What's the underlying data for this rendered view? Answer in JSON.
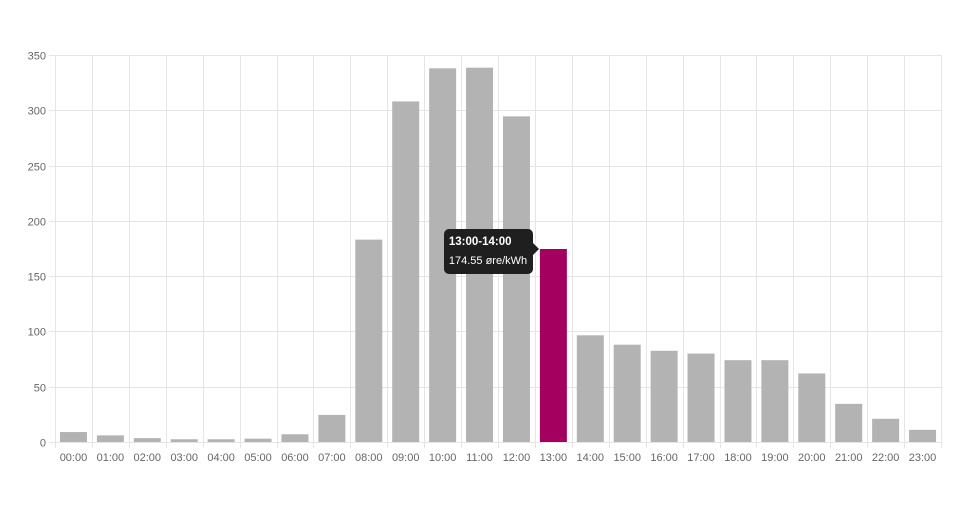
{
  "chart_data": {
    "type": "bar",
    "categories": [
      "00:00",
      "01:00",
      "02:00",
      "03:00",
      "04:00",
      "05:00",
      "06:00",
      "07:00",
      "08:00",
      "09:00",
      "10:00",
      "11:00",
      "12:00",
      "13:00",
      "14:00",
      "15:00",
      "16:00",
      "17:00",
      "18:00",
      "19:00",
      "20:00",
      "21:00",
      "22:00",
      "23:00"
    ],
    "values": [
      9,
      6,
      3.5,
      2.5,
      2.5,
      3,
      7,
      24.5,
      183,
      308,
      338,
      338.5,
      294.5,
      174.55,
      96.5,
      88,
      82.5,
      80,
      74,
      74,
      62,
      34.5,
      21,
      11
    ],
    "ylim": [
      0,
      350
    ],
    "yticks": [
      0,
      50,
      100,
      150,
      200,
      250,
      300,
      350
    ],
    "grid": true,
    "colors": {
      "bar": "#b3b3b3",
      "highlight": "#a3005f",
      "grid": "#e5e5e5",
      "tick_text": "#666666"
    },
    "highlight_index": 13,
    "tooltip": {
      "title": "13:00-14:00",
      "body": "174.55 øre/kWh"
    }
  }
}
